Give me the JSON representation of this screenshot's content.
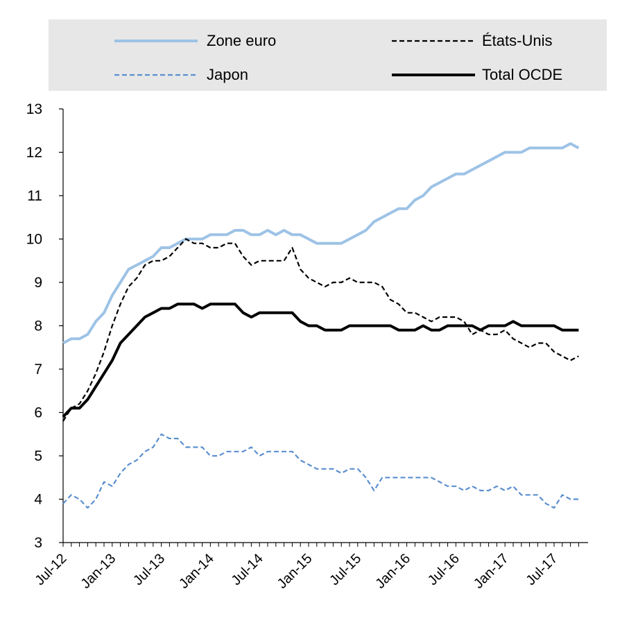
{
  "chart_data": {
    "type": "line",
    "title": "",
    "xlabel": "",
    "ylabel": "",
    "ylim": [
      3,
      13
    ],
    "yticks": [
      "3",
      "4",
      "5",
      "6",
      "7",
      "8",
      "9",
      "10",
      "11",
      "12",
      "13"
    ],
    "xtick_labels": [
      "Jul-12",
      "Jan-13",
      "Jul-13",
      "Jan-14",
      "Jul-14",
      "Jan-15",
      "Jul-15",
      "Jan-16",
      "Jul-16",
      "Jan-17",
      "Jul-17"
    ],
    "x": [
      "2012-07",
      "2012-08",
      "2012-09",
      "2012-10",
      "2012-11",
      "2012-12",
      "2013-01",
      "2013-02",
      "2013-03",
      "2013-04",
      "2013-05",
      "2013-06",
      "2013-07",
      "2013-08",
      "2013-09",
      "2013-10",
      "2013-11",
      "2013-12",
      "2014-01",
      "2014-02",
      "2014-03",
      "2014-04",
      "2014-05",
      "2014-06",
      "2014-07",
      "2014-08",
      "2014-09",
      "2014-10",
      "2014-11",
      "2014-12",
      "2015-01",
      "2015-02",
      "2015-03",
      "2015-04",
      "2015-05",
      "2015-06",
      "2015-07",
      "2015-08",
      "2015-09",
      "2015-10",
      "2015-11",
      "2015-12",
      "2016-01",
      "2016-02",
      "2016-03",
      "2016-04",
      "2016-05",
      "2016-06",
      "2016-07",
      "2016-08",
      "2016-09",
      "2016-10",
      "2016-11",
      "2016-12",
      "2017-01",
      "2017-02",
      "2017-03",
      "2017-04",
      "2017-05",
      "2017-06",
      "2017-07",
      "2017-08",
      "2017-09",
      "2017-10"
    ],
    "grid": false,
    "legend_position": "top",
    "series": [
      {
        "name": "Zone euro",
        "color": "#9dc3e6",
        "style": "solid",
        "values": [
          7.6,
          7.7,
          7.7,
          7.8,
          8.1,
          8.3,
          8.7,
          9.0,
          9.3,
          9.4,
          9.5,
          9.6,
          9.8,
          9.8,
          9.9,
          10.0,
          10.0,
          10.0,
          10.1,
          10.1,
          10.1,
          10.2,
          10.2,
          10.1,
          10.1,
          10.2,
          10.1,
          10.2,
          10.1,
          10.1,
          10.0,
          9.9,
          9.9,
          9.9,
          9.9,
          10.0,
          10.1,
          10.2,
          10.4,
          10.5,
          10.6,
          10.7,
          10.7,
          10.9,
          11.0,
          11.2,
          11.3,
          11.4,
          11.5,
          11.5,
          11.6,
          11.7,
          11.8,
          11.9,
          12.0,
          12.0,
          12.0,
          12.1,
          12.1,
          12.1,
          12.1,
          12.1,
          12.2,
          12.1
        ]
      },
      {
        "name": "États-Unis",
        "color": "#000000",
        "style": "dashed",
        "values": [
          5.8,
          6.1,
          6.2,
          6.5,
          6.9,
          7.4,
          8.0,
          8.5,
          8.9,
          9.1,
          9.4,
          9.5,
          9.5,
          9.6,
          9.8,
          10.0,
          9.9,
          9.9,
          9.8,
          9.8,
          9.9,
          9.9,
          9.6,
          9.4,
          9.5,
          9.5,
          9.5,
          9.5,
          9.8,
          9.3,
          9.1,
          9.0,
          8.9,
          9.0,
          9.0,
          9.1,
          9.0,
          9.0,
          9.0,
          8.9,
          8.6,
          8.5,
          8.3,
          8.3,
          8.2,
          8.1,
          8.2,
          8.2,
          8.2,
          8.1,
          7.8,
          7.9,
          7.8,
          7.8,
          7.9,
          7.7,
          7.6,
          7.5,
          7.6,
          7.6,
          7.4,
          7.3,
          7.2,
          7.3
        ]
      },
      {
        "name": "Japon",
        "color": "#5b8fcf",
        "style": "dashed",
        "values": [
          3.9,
          4.1,
          4.0,
          3.8,
          4.0,
          4.4,
          4.3,
          4.6,
          4.8,
          4.9,
          5.1,
          5.2,
          5.5,
          5.4,
          5.4,
          5.2,
          5.2,
          5.2,
          5.0,
          5.0,
          5.1,
          5.1,
          5.1,
          5.2,
          5.0,
          5.1,
          5.1,
          5.1,
          5.1,
          4.9,
          4.8,
          4.7,
          4.7,
          4.7,
          4.6,
          4.7,
          4.7,
          4.5,
          4.2,
          4.5,
          4.5,
          4.5,
          4.5,
          4.5,
          4.5,
          4.5,
          4.4,
          4.3,
          4.3,
          4.2,
          4.3,
          4.2,
          4.2,
          4.3,
          4.2,
          4.3,
          4.1,
          4.1,
          4.1,
          3.9,
          3.8,
          4.1,
          4.0,
          4.0
        ]
      },
      {
        "name": "Total OCDE",
        "color": "#000000",
        "style": "solid",
        "values": [
          5.9,
          6.1,
          6.1,
          6.3,
          6.6,
          6.9,
          7.2,
          7.6,
          7.8,
          8.0,
          8.2,
          8.3,
          8.4,
          8.4,
          8.5,
          8.5,
          8.5,
          8.4,
          8.5,
          8.5,
          8.5,
          8.5,
          8.3,
          8.2,
          8.3,
          8.3,
          8.3,
          8.3,
          8.3,
          8.1,
          8.0,
          8.0,
          7.9,
          7.9,
          7.9,
          8.0,
          8.0,
          8.0,
          8.0,
          8.0,
          8.0,
          7.9,
          7.9,
          7.9,
          8.0,
          7.9,
          7.9,
          8.0,
          8.0,
          8.0,
          8.0,
          7.9,
          8.0,
          8.0,
          8.0,
          8.1,
          8.0,
          8.0,
          8.0,
          8.0,
          8.0,
          7.9,
          7.9,
          7.9
        ]
      }
    ]
  }
}
